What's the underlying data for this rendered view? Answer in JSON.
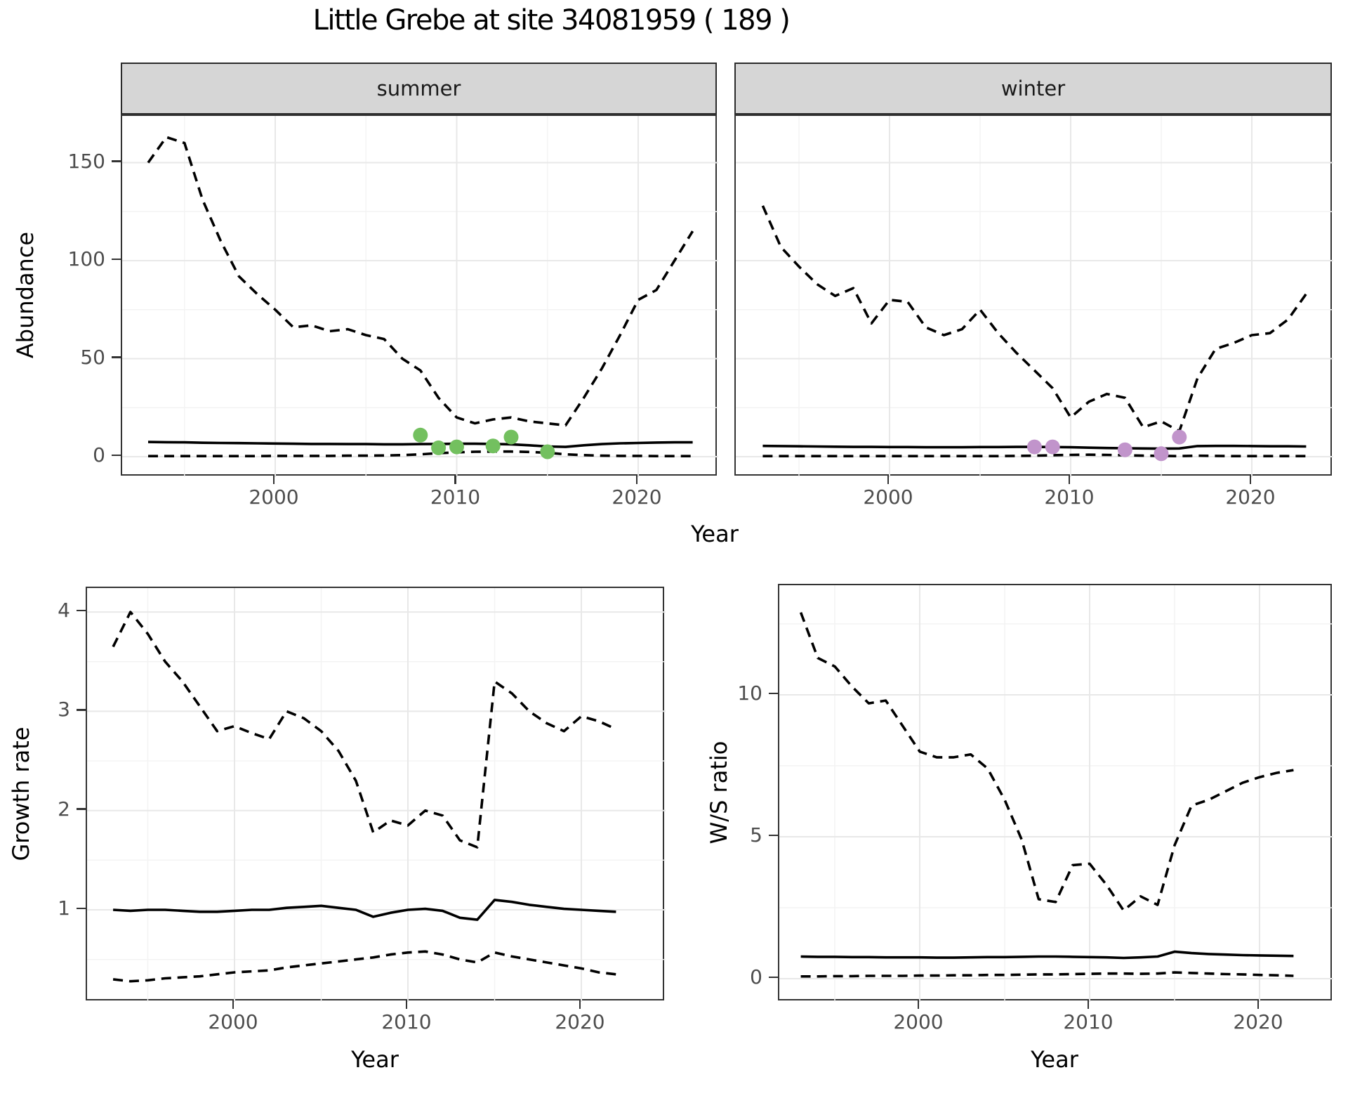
{
  "title": "Little Grebe at site 34081959 ( 189 )",
  "facets": {
    "summer": "summer",
    "winter": "winter"
  },
  "axes": {
    "abundance_y": "Abundance",
    "top_x": "Year",
    "growth_y": "Growth rate",
    "growth_x": "Year",
    "ws_y": "W/S ratio",
    "ws_x": "Year"
  },
  "colors": {
    "summer_points": "#73c05f",
    "winter_points": "#c194cb",
    "line": "#000000",
    "strip_bg": "#d6d6d6",
    "grid_major": "#e8e8e8",
    "grid_minor": "#f3f3f3",
    "tick_text": "#4d4d4d"
  },
  "chart_data": [
    {
      "id": "abundance-summer",
      "type": "line",
      "facet_label": "summer",
      "xlabel": "Year",
      "ylabel": "Abundance",
      "xlim": [
        1991.5,
        2024.4
      ],
      "ylim": [
        0,
        174
      ],
      "x_ticks": [
        2000,
        2010,
        2020
      ],
      "x_minor": [
        1995,
        2005,
        2015
      ],
      "y_ticks": [
        0,
        50,
        100,
        150
      ],
      "y_minor": [
        25,
        75,
        125
      ],
      "x": [
        1993,
        1994,
        1995,
        1996,
        1997,
        1998,
        1999,
        2000,
        2001,
        2002,
        2003,
        2004,
        2005,
        2006,
        2007,
        2008,
        2009,
        2010,
        2011,
        2012,
        2013,
        2014,
        2015,
        2016,
        2017,
        2018,
        2019,
        2020,
        2021,
        2022,
        2023
      ],
      "series": [
        {
          "name": "upper_ci",
          "style": "dashed",
          "values": [
            150,
            163,
            160,
            131,
            110,
            92,
            83,
            75,
            66,
            67,
            64,
            65,
            62,
            60,
            50,
            44,
            30,
            20,
            17,
            19,
            20,
            18,
            17,
            16,
            30,
            45,
            62,
            80,
            85,
            100,
            115
          ]
        },
        {
          "name": "median",
          "style": "solid",
          "values": [
            7.5,
            7.4,
            7.3,
            7.1,
            7.0,
            6.9,
            6.8,
            6.7,
            6.6,
            6.5,
            6.5,
            6.4,
            6.4,
            6.3,
            6.3,
            6.4,
            6.5,
            6.6,
            6.6,
            6.5,
            6.3,
            5.8,
            5.2,
            5.0,
            5.8,
            6.4,
            6.8,
            7.0,
            7.2,
            7.3,
            7.3
          ]
        },
        {
          "name": "lower_ci",
          "style": "dashed",
          "values": [
            0.3,
            0.3,
            0.3,
            0.3,
            0.3,
            0.3,
            0.3,
            0.4,
            0.4,
            0.4,
            0.4,
            0.5,
            0.5,
            0.6,
            0.8,
            1.2,
            1.8,
            2.2,
            2.5,
            2.6,
            2.6,
            2.4,
            2.0,
            1.2,
            0.8,
            0.5,
            0.4,
            0.4,
            0.3,
            0.3,
            0.3
          ]
        }
      ],
      "observed_points": {
        "x": [
          2008,
          2009,
          2010,
          2012,
          2013,
          2015
        ],
        "y": [
          11,
          4.5,
          5,
          5.5,
          10,
          2.5
        ],
        "color_key": "summer_points"
      }
    },
    {
      "id": "abundance-winter",
      "type": "line",
      "facet_label": "winter",
      "xlabel": "Year",
      "ylabel": "Abundance",
      "xlim": [
        1991.5,
        2024.4
      ],
      "ylim": [
        0,
        174
      ],
      "x_ticks": [
        2000,
        2010,
        2020
      ],
      "x_minor": [
        1995,
        2005,
        2015
      ],
      "y_ticks": [
        0,
        50,
        100,
        150
      ],
      "y_minor": [
        25,
        75,
        125
      ],
      "x": [
        1993,
        1994,
        1995,
        1996,
        1997,
        1998,
        1999,
        2000,
        2001,
        2002,
        2003,
        2004,
        2005,
        2006,
        2007,
        2008,
        2009,
        2010,
        2011,
        2012,
        2013,
        2014,
        2015,
        2016,
        2017,
        2018,
        2019,
        2020,
        2021,
        2022,
        2023
      ],
      "series": [
        {
          "name": "upper_ci",
          "style": "dashed",
          "values": [
            128,
            107,
            97,
            88,
            82,
            86,
            68,
            80,
            79,
            66,
            62,
            65,
            75,
            63,
            53,
            44,
            35,
            20,
            28,
            32,
            30,
            15,
            18,
            13,
            40,
            55,
            58,
            62,
            63,
            70,
            83
          ]
        },
        {
          "name": "median",
          "style": "solid",
          "values": [
            5.5,
            5.4,
            5.3,
            5.2,
            5.1,
            5.0,
            5.0,
            4.9,
            4.9,
            4.8,
            4.8,
            4.8,
            4.9,
            4.9,
            5.0,
            5.0,
            4.9,
            4.8,
            4.6,
            4.4,
            4.3,
            4.2,
            4.1,
            4.2,
            5.4,
            5.5,
            5.5,
            5.4,
            5.3,
            5.3,
            5.2
          ]
        },
        {
          "name": "lower_ci",
          "style": "dashed",
          "values": [
            0.3,
            0.3,
            0.3,
            0.3,
            0.3,
            0.3,
            0.3,
            0.3,
            0.3,
            0.3,
            0.3,
            0.3,
            0.3,
            0.3,
            0.4,
            0.5,
            0.7,
            0.9,
            1.0,
            0.9,
            0.7,
            0.5,
            0.4,
            0.3,
            0.5,
            0.4,
            0.3,
            0.3,
            0.3,
            0.3,
            0.3
          ]
        }
      ],
      "observed_points": {
        "x": [
          2008,
          2009,
          2013,
          2015,
          2016
        ],
        "y": [
          5,
          5,
          3.5,
          1.5,
          10
        ],
        "color_key": "winter_points"
      }
    },
    {
      "id": "growth-rate",
      "type": "line",
      "xlabel": "Year",
      "ylabel": "Growth rate",
      "xlim": [
        1991.5,
        2024.9
      ],
      "ylim": [
        0.07,
        4.24
      ],
      "x_ticks": [
        2000,
        2010,
        2020
      ],
      "x_minor": [
        1995,
        2005,
        2015
      ],
      "y_ticks": [
        1,
        2,
        3,
        4
      ],
      "y_minor": [
        0.5,
        1.5,
        2.5,
        3.5
      ],
      "x": [
        1993,
        1994,
        1995,
        1996,
        1997,
        1998,
        1999,
        2000,
        2001,
        2002,
        2003,
        2004,
        2005,
        2006,
        2007,
        2008,
        2009,
        2010,
        2011,
        2012,
        2013,
        2014,
        2015,
        2016,
        2017,
        2018,
        2019,
        2020,
        2021,
        2022
      ],
      "series": [
        {
          "name": "upper_ci",
          "style": "dashed",
          "values": [
            3.65,
            4.0,
            3.78,
            3.5,
            3.3,
            3.05,
            2.8,
            2.85,
            2.78,
            2.72,
            3.0,
            2.93,
            2.8,
            2.6,
            2.3,
            1.78,
            1.9,
            1.85,
            2.0,
            1.95,
            1.7,
            1.63,
            3.3,
            3.18,
            3.0,
            2.88,
            2.8,
            2.95,
            2.9,
            2.82
          ]
        },
        {
          "name": "median",
          "style": "solid",
          "values": [
            1.0,
            0.99,
            1.0,
            1.0,
            0.99,
            0.98,
            0.98,
            0.99,
            1.0,
            1.0,
            1.02,
            1.03,
            1.04,
            1.02,
            1.0,
            0.93,
            0.97,
            1.0,
            1.01,
            0.99,
            0.92,
            0.9,
            1.1,
            1.08,
            1.05,
            1.03,
            1.01,
            1.0,
            0.99,
            0.98
          ]
        },
        {
          "name": "lower_ci",
          "style": "dashed",
          "values": [
            0.3,
            0.28,
            0.29,
            0.31,
            0.32,
            0.33,
            0.35,
            0.37,
            0.38,
            0.39,
            0.42,
            0.44,
            0.46,
            0.48,
            0.5,
            0.52,
            0.55,
            0.57,
            0.58,
            0.55,
            0.5,
            0.47,
            0.57,
            0.53,
            0.5,
            0.47,
            0.44,
            0.41,
            0.37,
            0.35
          ]
        }
      ]
    },
    {
      "id": "ws-ratio",
      "type": "line",
      "xlabel": "Year",
      "ylabel": "W/S ratio",
      "xlim": [
        1991.7,
        2024.3
      ],
      "ylim": [
        -0.9,
        13.9
      ],
      "x_ticks": [
        2000,
        2010,
        2020
      ],
      "x_minor": [
        1995,
        2005,
        2015
      ],
      "y_ticks": [
        0,
        5,
        10
      ],
      "y_minor": [
        2.5,
        7.5,
        12.5
      ],
      "x": [
        1993,
        1994,
        1995,
        1996,
        1997,
        1998,
        1999,
        2000,
        2001,
        2002,
        2003,
        2004,
        2005,
        2006,
        2007,
        2008,
        2009,
        2010,
        2011,
        2012,
        2013,
        2014,
        2015,
        2016,
        2017,
        2018,
        2019,
        2020,
        2021,
        2022
      ],
      "series": [
        {
          "name": "upper_ci",
          "style": "dashed",
          "values": [
            12.9,
            11.3,
            11.0,
            10.3,
            9.7,
            9.8,
            8.9,
            8.0,
            7.8,
            7.8,
            7.9,
            7.4,
            6.3,
            4.9,
            2.8,
            2.7,
            4.0,
            4.05,
            3.3,
            2.4,
            2.9,
            2.6,
            4.7,
            6.1,
            6.3,
            6.6,
            6.9,
            7.1,
            7.25,
            7.35
          ]
        },
        {
          "name": "median",
          "style": "solid",
          "values": [
            0.78,
            0.77,
            0.77,
            0.76,
            0.76,
            0.75,
            0.75,
            0.75,
            0.74,
            0.74,
            0.75,
            0.76,
            0.76,
            0.77,
            0.78,
            0.78,
            0.77,
            0.76,
            0.75,
            0.73,
            0.75,
            0.78,
            0.95,
            0.9,
            0.87,
            0.85,
            0.83,
            0.82,
            0.81,
            0.8
          ]
        },
        {
          "name": "lower_ci",
          "style": "dashed",
          "values": [
            0.08,
            0.08,
            0.09,
            0.09,
            0.1,
            0.1,
            0.1,
            0.11,
            0.11,
            0.12,
            0.12,
            0.13,
            0.13,
            0.14,
            0.15,
            0.15,
            0.16,
            0.17,
            0.18,
            0.18,
            0.17,
            0.18,
            0.22,
            0.2,
            0.18,
            0.16,
            0.15,
            0.13,
            0.12,
            0.1
          ]
        }
      ]
    }
  ]
}
